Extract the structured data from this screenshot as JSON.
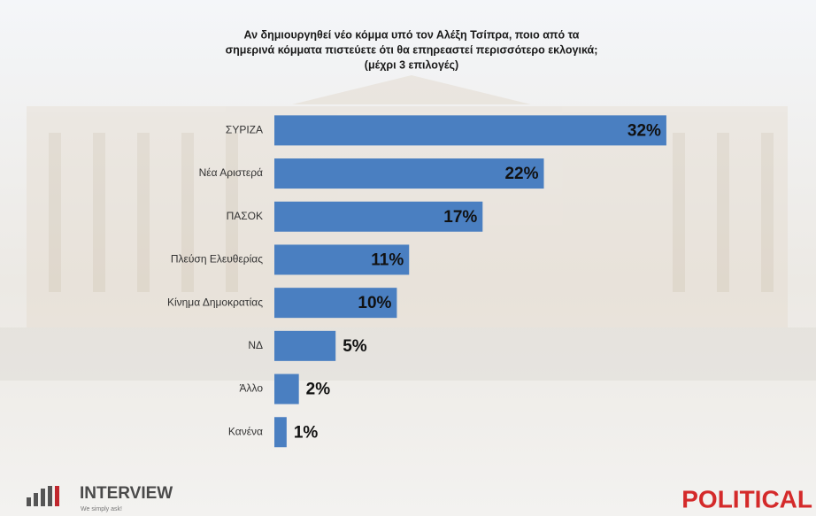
{
  "chart_data": {
    "type": "bar",
    "orientation": "horizontal",
    "title": [
      "Αν δημιουργηθεί νέο κόμμα υπό τον Αλέξη Τσίπρα, ποιο από τα",
      "σημερινά κόμματα πιστεύετε ότι θα επηρεαστεί περισσότερο εκλογικά;",
      "(μέχρι 3 επιλογές)"
    ],
    "categories": [
      "ΣΥΡΙΖΑ",
      "Νέα Αριστερά",
      "ΠΑΣΟΚ",
      "Πλεύση Ελευθερίας",
      "Κίνημα Δημοκρατίας",
      "ΝΔ",
      "Άλλο",
      "Κανένα"
    ],
    "values": [
      32,
      22,
      17,
      11,
      10,
      5,
      2,
      1
    ],
    "value_labels": [
      "32%",
      "22%",
      "17%",
      "11%",
      "10%",
      "5%",
      "2%",
      "1%"
    ],
    "color": "#4a7fc1",
    "xlim": [
      0,
      44
    ]
  },
  "footer": {
    "left_logo": "INTERVIEW",
    "left_tagline": "We simply ask!",
    "right_logo": "POLITICAL"
  }
}
